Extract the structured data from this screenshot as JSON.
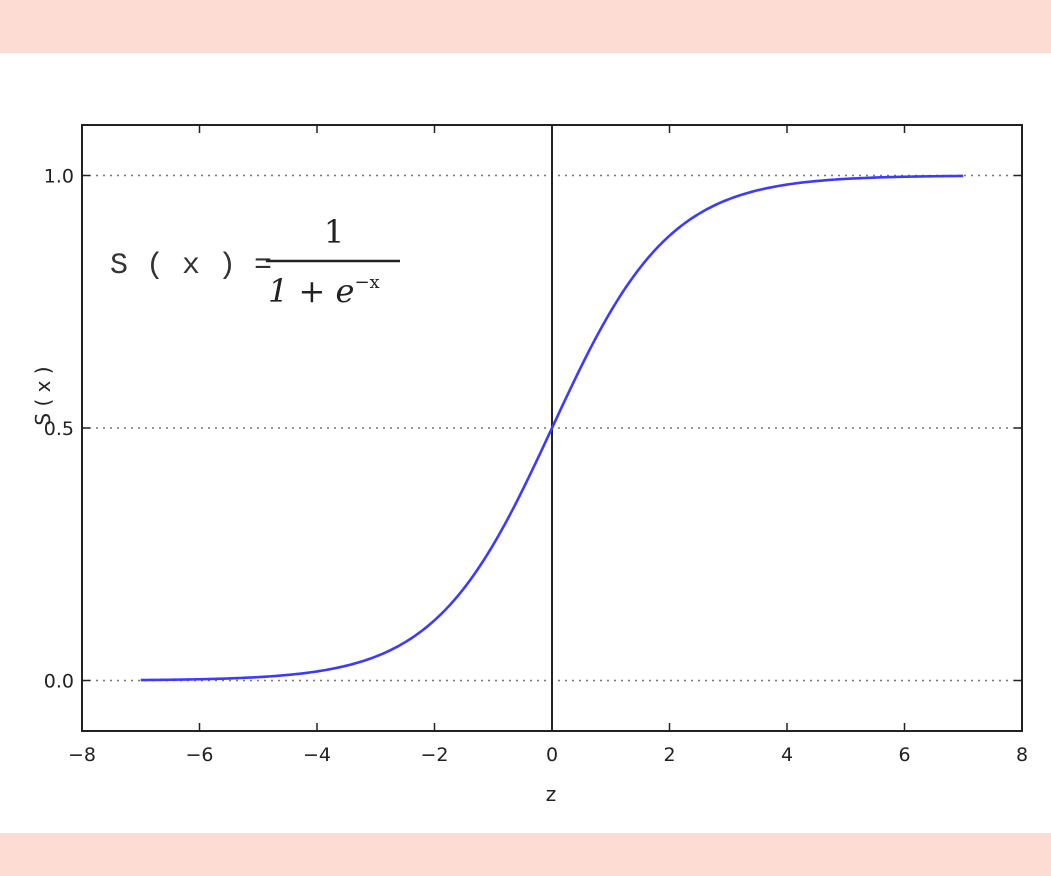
{
  "chart_data": {
    "type": "line",
    "function": "sigmoid",
    "xlabel": "z",
    "ylabel": "S ( x )",
    "xlim": [
      -8,
      8
    ],
    "ylim": [
      -0.1,
      1.1
    ],
    "xticks": [
      -8,
      -6,
      -4,
      -2,
      0,
      2,
      4,
      6,
      8
    ],
    "xtick_labels": [
      "−8",
      "−6",
      "−4",
      "−2",
      "0",
      "2",
      "4",
      "6",
      "8"
    ],
    "yticks": [
      0.0,
      0.5,
      1.0
    ],
    "ytick_labels": [
      "0.0",
      "0.5",
      "1.0"
    ],
    "grid": "dotted horizontal at y ticks",
    "x_range": [
      -7,
      7
    ],
    "series": [
      {
        "color": "#3b3bff",
        "x": [
          -7,
          -6,
          -5,
          -4,
          -3,
          -2,
          -1,
          0,
          1,
          2,
          3,
          4,
          5,
          6,
          7
        ],
        "values": [
          0.0009,
          0.0025,
          0.0067,
          0.018,
          0.047,
          0.119,
          0.269,
          0.5,
          0.731,
          0.881,
          0.953,
          0.982,
          0.993,
          0.9975,
          0.9991
        ]
      }
    ],
    "annotation": {
      "lhs": "S ( x ) =",
      "numerator": "1",
      "denominator_base": "1 + e",
      "denominator_exp": "−x"
    }
  },
  "colors": {
    "band": "#fddcd3",
    "line": "#3b3bff",
    "axis": "#222222"
  }
}
